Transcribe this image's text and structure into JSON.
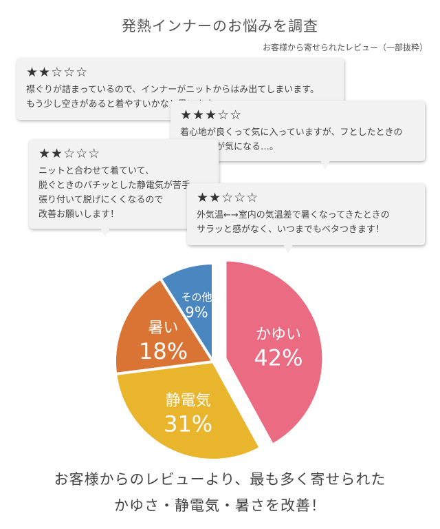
{
  "header": {
    "title": "発熱インナーのお悩みを調査",
    "subtitle": "お客様から寄せられたレビュー（一部抜粋）"
  },
  "reviews": [
    {
      "rating": 2,
      "stars": "★★☆☆☆",
      "text": "襟ぐりが詰まっているので、インナーがニットからはみ出てしまいます。\nもう少し空きがあると着やすいかなと思います。"
    },
    {
      "rating": 3,
      "stars": "★★★☆☆",
      "text": "着心地が良くって気に入っていますが、フとしたときの\n肌当たりが気になる…。"
    },
    {
      "rating": 2,
      "stars": "★★☆☆☆",
      "text": "ニットと合わせて着ていて、\n脱ぐときのバチッとした静電気が苦手。\n張り付いて脱げにくくなるので\n改善お願いします！"
    },
    {
      "rating": 2,
      "stars": "★★☆☆☆",
      "text": "外気温←→室内の気温差で暑くなってきたときの\nサラッと感がなく、いつまでもベタつきます！"
    }
  ],
  "chart_data": {
    "type": "pie",
    "slices": [
      {
        "label": "かゆい",
        "value": 42,
        "value_label": "42%",
        "color": "#ea6b82",
        "exploded": true
      },
      {
        "label": "静電気",
        "value": 31,
        "value_label": "31%",
        "color": "#e8b52c",
        "exploded": false
      },
      {
        "label": "暑い",
        "value": 18,
        "value_label": "18%",
        "color": "#da7434",
        "exploded": false
      },
      {
        "label": "その他",
        "value": 9,
        "value_label": "9%",
        "color": "#4a86bf",
        "exploded": false
      }
    ]
  },
  "footer": {
    "line1": "お客様からのレビューより、最も多く寄せられた",
    "line2": "かゆさ・静電気・暑さを改善！"
  }
}
